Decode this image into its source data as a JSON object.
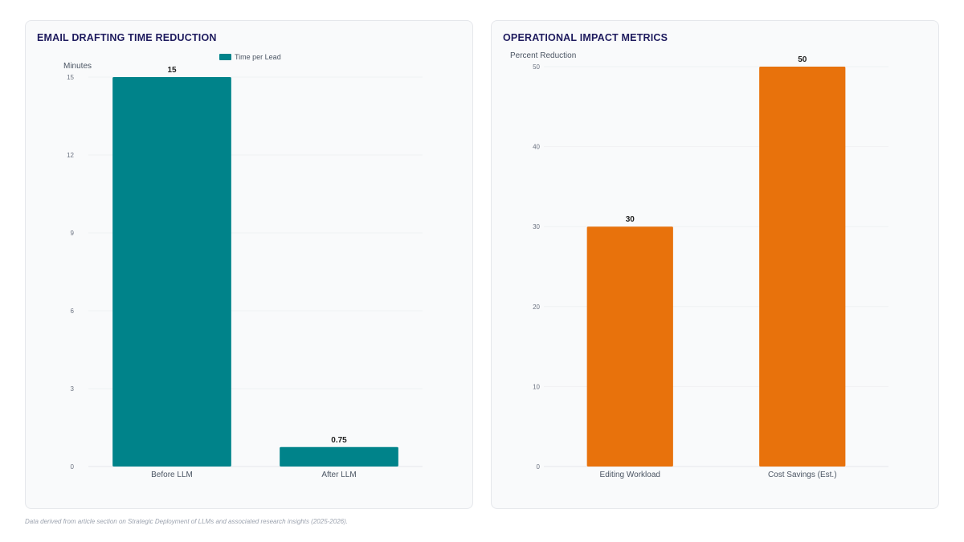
{
  "chart_data": [
    {
      "type": "bar",
      "title": "EMAIL DRAFTING TIME REDUCTION",
      "ylabel": "Minutes",
      "xlabel": "",
      "categories": [
        "Before LLM",
        "After LLM"
      ],
      "series": [
        {
          "name": "Time per Lead",
          "values": [
            15,
            0.75
          ]
        }
      ],
      "data_labels": [
        "15",
        "0.75"
      ],
      "ylim": [
        0,
        15
      ],
      "yticks": [
        0,
        3,
        6,
        9,
        12,
        15
      ],
      "legend": "top-center",
      "grid": true,
      "color": "#00838a"
    },
    {
      "type": "bar",
      "title": "OPERATIONAL IMPACT METRICS",
      "ylabel": "Percent Reduction",
      "xlabel": "",
      "categories": [
        "Editing Workload",
        "Cost Savings (Est.)"
      ],
      "series": [
        {
          "values": [
            30,
            50
          ]
        }
      ],
      "data_labels": [
        "30",
        "50"
      ],
      "ylim": [
        0,
        50
      ],
      "yticks": [
        0,
        10,
        20,
        30,
        40,
        50
      ],
      "legend": "none",
      "grid": true,
      "color": "#e8720c"
    }
  ],
  "footer": {
    "note": "Data derived from article section on Strategic Deployment of LLMs and associated research insights (2025-2026)."
  }
}
